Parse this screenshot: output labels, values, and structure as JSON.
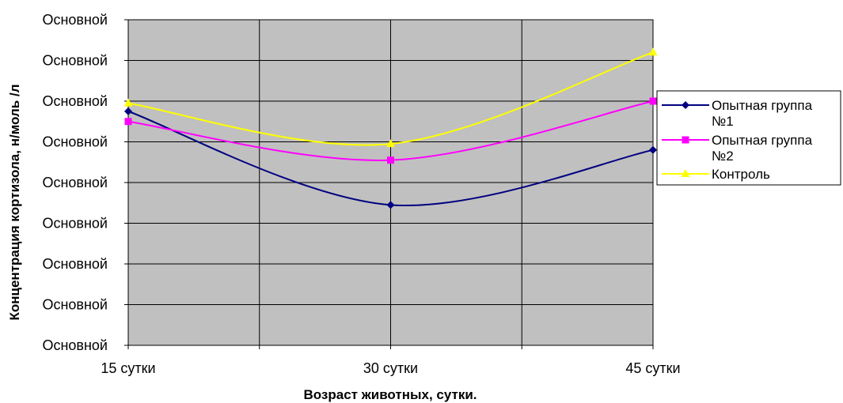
{
  "chart_data": {
    "type": "line",
    "categories": [
      "15 сутки",
      "30 сутки",
      "45 сутки"
    ],
    "y_tick_labels": [
      "Основной",
      "Основной",
      "Основной",
      "Основной",
      "Основной",
      "Основной",
      "Основной",
      "Основной",
      "Основной"
    ],
    "xlabel": "Возраст животных, сутки.",
    "ylabel": "Концентрация кортизола, н/моль /л",
    "ylim": [
      0,
      8
    ],
    "grid": true,
    "legend_position": "right",
    "plot_background": "#c0c0c0",
    "series": [
      {
        "name": "Опытная группа №1",
        "values": [
          5.75,
          3.45,
          4.8
        ],
        "color": "#000080",
        "marker": "diamond"
      },
      {
        "name": "Опытная группа №2",
        "values": [
          5.5,
          4.55,
          6.0
        ],
        "color": "#ff00ff",
        "marker": "square"
      },
      {
        "name": "Контроль",
        "values": [
          5.95,
          4.95,
          7.2
        ],
        "color": "#ffff00",
        "marker": "triangle"
      }
    ]
  }
}
